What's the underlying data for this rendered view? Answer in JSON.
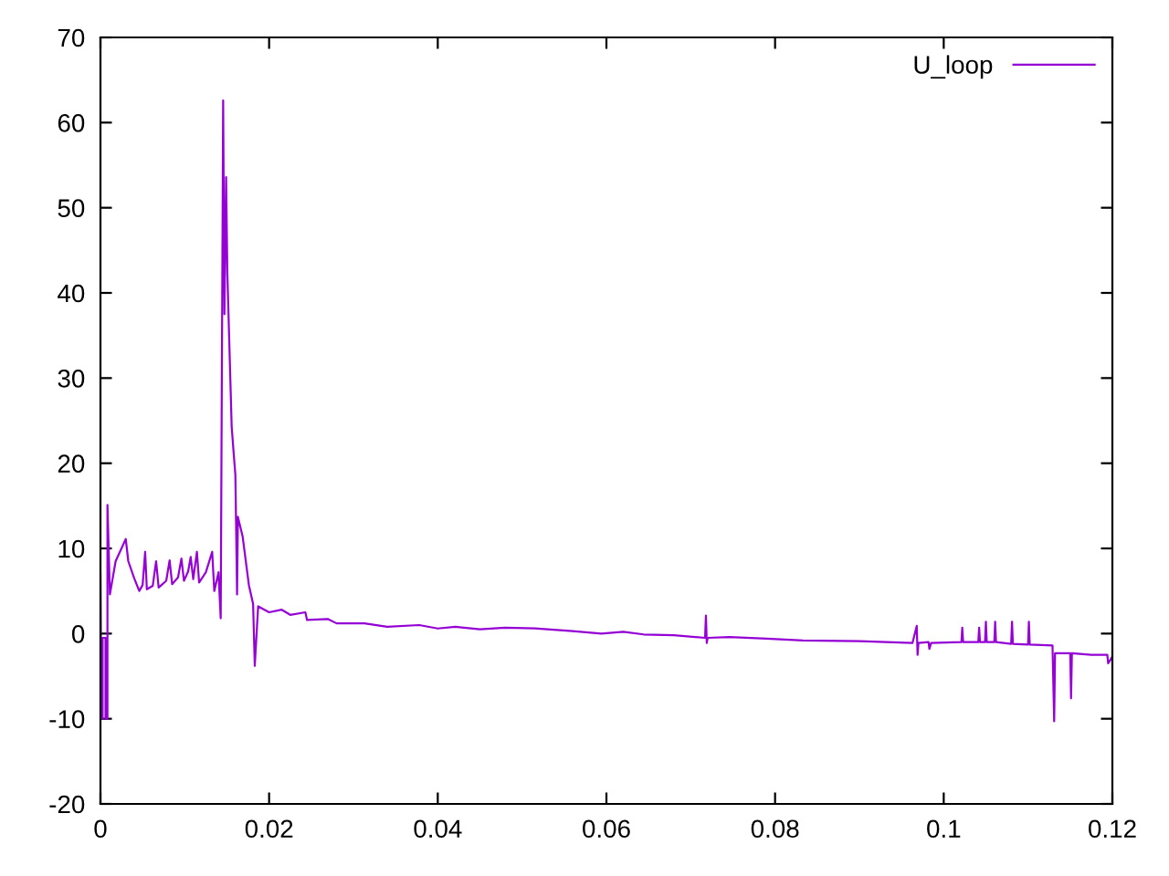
{
  "chart_data": {
    "type": "line",
    "legend": "top right",
    "xlim": [
      0,
      0.12
    ],
    "xticks": [
      0,
      0.02,
      0.04,
      0.06,
      0.08,
      0.1,
      0.12
    ],
    "ylim": [
      -20,
      70
    ],
    "yticks": [
      -20,
      -10,
      0,
      10,
      20,
      30,
      40,
      50,
      60,
      70
    ],
    "series": [
      {
        "name": "U_loop",
        "color": "#9400d3",
        "x": [
          0,
          0.0001,
          0.00026,
          0.00026,
          0.0006,
          0.0006,
          0.00083,
          0.00083,
          0.00112,
          0.0018,
          0.003,
          0.0033,
          0.004,
          0.0046,
          0.005,
          0.0053,
          0.0055,
          0.0062,
          0.0066,
          0.0069,
          0.0078,
          0.0082,
          0.0085,
          0.0092,
          0.0096,
          0.0099,
          0.0104,
          0.0107,
          0.011,
          0.01144,
          0.0117,
          0.0125,
          0.01325,
          0.0135,
          0.014,
          0.01426,
          0.01455,
          0.0147,
          0.0149,
          0.01505,
          0.01556,
          0.01578,
          0.016,
          0.0162,
          0.0163,
          0.01686,
          0.0176,
          0.0181,
          0.0183,
          0.0187,
          0.02,
          0.0215,
          0.0225,
          0.0243,
          0.0245,
          0.027,
          0.028,
          0.0313,
          0.034,
          0.0378,
          0.04,
          0.0421,
          0.045,
          0.048,
          0.0515,
          0.056,
          0.0594,
          0.062,
          0.0644,
          0.068,
          0.0717,
          0.0718,
          0.0719,
          0.072,
          0.0746,
          0.079,
          0.0833,
          0.09,
          0.0963,
          0.0968,
          0.0969,
          0.097,
          0.0982,
          0.0983,
          0.0985,
          0.1021,
          0.1022,
          0.1023,
          0.1041,
          0.1042,
          0.1043,
          0.1049,
          0.105,
          0.1051,
          0.106,
          0.1061,
          0.1062,
          0.108,
          0.1081,
          0.1082,
          0.11,
          0.1101,
          0.1102,
          0.1129,
          0.1131,
          0.1132,
          0.115,
          0.1151,
          0.1152,
          0.1175,
          0.1194,
          0.1195,
          0.12
        ],
        "values": [
          7.1,
          -10,
          -10,
          -0.5,
          -0.5,
          -10,
          -10,
          15.1,
          4.6,
          8.5,
          11.1,
          8.5,
          6.5,
          5.0,
          5.7,
          9.6,
          5.2,
          5.6,
          8.5,
          5.4,
          6.2,
          8.6,
          5.8,
          6.6,
          8.8,
          6.2,
          7.3,
          9.0,
          6.4,
          9.6,
          6.0,
          7.2,
          9.6,
          5.0,
          7.2,
          1.8,
          62.6,
          37.5,
          53.6,
          42.2,
          24.3,
          21.4,
          18.6,
          4.6,
          13.7,
          11.4,
          5.7,
          3.5,
          -3.8,
          3.2,
          2.5,
          2.8,
          2.2,
          2.5,
          1.6,
          1.7,
          1.2,
          1.2,
          0.8,
          1.0,
          0.6,
          0.8,
          0.5,
          0.7,
          0.6,
          0.3,
          0.0,
          0.2,
          -0.1,
          -0.2,
          -0.5,
          2.1,
          -1.1,
          -0.5,
          -0.4,
          -0.6,
          -0.8,
          -0.9,
          -1.1,
          0.9,
          -2.5,
          -1.1,
          -1.0,
          -1.8,
          -1.1,
          -1.0,
          0.7,
          -1.0,
          -1.0,
          0.7,
          -1.0,
          -1.0,
          1.4,
          -1.0,
          -1.0,
          1.4,
          -1.0,
          -1.2,
          1.4,
          -1.2,
          -1.3,
          1.4,
          -1.3,
          -1.4,
          -10.3,
          -2.3,
          -2.3,
          -7.6,
          -2.3,
          -2.5,
          -2.5,
          -3.5,
          -2.7
        ]
      }
    ]
  }
}
